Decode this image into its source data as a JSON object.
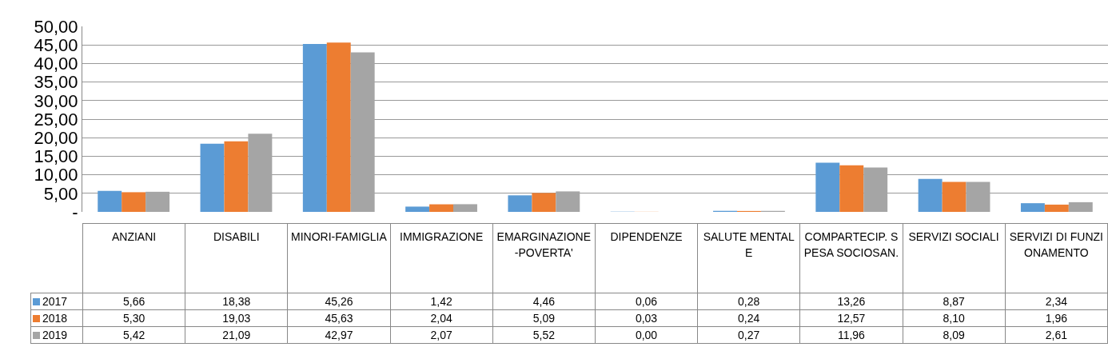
{
  "chart_data": {
    "type": "bar",
    "categories": [
      "ANZIANI",
      "DISABILI",
      "MINORI-FAMIGLIA",
      "IMMIGRAZIONE",
      "EMARGINAZIONE-POVERTA'",
      "DIPENDENZE",
      "SALUTE MENTALE",
      "COMPARTECIP. SPESA SOCIOSAN.",
      "SERVIZI SOCIALI",
      "SERVIZI DI FUNZIONAMENTO"
    ],
    "series": [
      {
        "name": "2017",
        "color": "#5b9bd5",
        "values": [
          5.66,
          18.38,
          45.26,
          1.42,
          4.46,
          0.06,
          0.28,
          13.26,
          8.87,
          2.34
        ],
        "value_labels": [
          "5,66",
          "18,38",
          "45,26",
          "1,42",
          "4,46",
          "0,06",
          "0,28",
          "13,26",
          "8,87",
          "2,34"
        ]
      },
      {
        "name": "2018",
        "color": "#ed7d31",
        "values": [
          5.3,
          19.03,
          45.63,
          2.04,
          5.09,
          0.03,
          0.24,
          12.57,
          8.1,
          1.96
        ],
        "value_labels": [
          "5,30",
          "19,03",
          "45,63",
          "2,04",
          "5,09",
          "0,03",
          "0,24",
          "12,57",
          "8,10",
          "1,96"
        ]
      },
      {
        "name": "2019",
        "color": "#a5a5a5",
        "values": [
          5.42,
          21.09,
          42.97,
          2.07,
          5.52,
          0.0,
          0.27,
          11.96,
          8.09,
          2.61
        ],
        "value_labels": [
          "5,42",
          "21,09",
          "42,97",
          "2,07",
          "5,52",
          "0,00",
          "0,27",
          "11,96",
          "8,09",
          "2,61"
        ]
      }
    ],
    "ylim": [
      0,
      50
    ],
    "yticks": [
      {
        "value": 0,
        "label": "-"
      },
      {
        "value": 5,
        "label": "5,00"
      },
      {
        "value": 10,
        "label": "10,00"
      },
      {
        "value": 15,
        "label": "15,00"
      },
      {
        "value": 20,
        "label": "20,00"
      },
      {
        "value": 25,
        "label": "25,00"
      },
      {
        "value": 30,
        "label": "30,00"
      },
      {
        "value": 35,
        "label": "35,00"
      },
      {
        "value": 40,
        "label": "40,00"
      },
      {
        "value": 45,
        "label": "45,00"
      },
      {
        "value": 50,
        "label": "50,00"
      }
    ],
    "grid": "y",
    "legend": "bottom left"
  }
}
